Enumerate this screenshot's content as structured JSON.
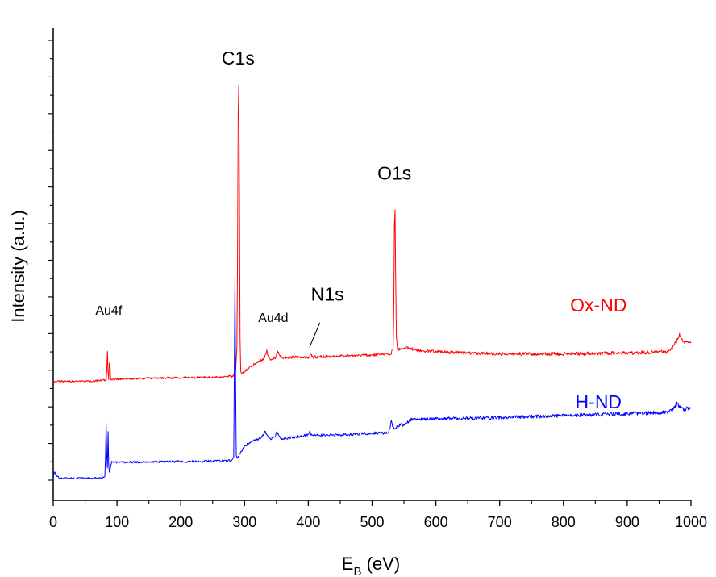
{
  "chart_data": {
    "type": "line",
    "xlabel_main": "E",
    "xlabel_sub": "B",
    "xlabel_rest": " (eV)",
    "ylabel": "Intensity (a.u.)",
    "xlim": [
      0,
      1000
    ],
    "x_ticks": [
      0,
      100,
      200,
      300,
      400,
      500,
      600,
      700,
      800,
      900,
      1000
    ],
    "y_tick_labels_shown": false,
    "grid": false,
    "series": [
      {
        "name": "Ox-ND",
        "color": "#ff0000",
        "points": [
          [
            0,
            0.245
          ],
          [
            60,
            0.245
          ],
          [
            80,
            0.248
          ],
          [
            83,
            0.247
          ],
          [
            84,
            0.275
          ],
          [
            85,
            0.32
          ],
          [
            86,
            0.27
          ],
          [
            87,
            0.25
          ],
          [
            88,
            0.29
          ],
          [
            89,
            0.285
          ],
          [
            90,
            0.25
          ],
          [
            95,
            0.25
          ],
          [
            140,
            0.252
          ],
          [
            200,
            0.254
          ],
          [
            250,
            0.255
          ],
          [
            282,
            0.258
          ],
          [
            286,
            0.27
          ],
          [
            288,
            0.33
          ],
          [
            289,
            0.55
          ],
          [
            290,
            0.9
          ],
          [
            291,
            0.98
          ],
          [
            292,
            0.7
          ],
          [
            293,
            0.35
          ],
          [
            294,
            0.27
          ],
          [
            296,
            0.263
          ],
          [
            300,
            0.27
          ],
          [
            310,
            0.282
          ],
          [
            320,
            0.292
          ],
          [
            330,
            0.3
          ],
          [
            333,
            0.31
          ],
          [
            335,
            0.32
          ],
          [
            337,
            0.305
          ],
          [
            340,
            0.298
          ],
          [
            348,
            0.302
          ],
          [
            352,
            0.318
          ],
          [
            355,
            0.31
          ],
          [
            360,
            0.303
          ],
          [
            380,
            0.305
          ],
          [
            400,
            0.304
          ],
          [
            404,
            0.312
          ],
          [
            407,
            0.305
          ],
          [
            450,
            0.308
          ],
          [
            500,
            0.31
          ],
          [
            530,
            0.313
          ],
          [
            533,
            0.33
          ],
          [
            534,
            0.42
          ],
          [
            535,
            0.63
          ],
          [
            536,
            0.67
          ],
          [
            537,
            0.5
          ],
          [
            538,
            0.36
          ],
          [
            540,
            0.325
          ],
          [
            545,
            0.325
          ],
          [
            555,
            0.33
          ],
          [
            562,
            0.325
          ],
          [
            580,
            0.32
          ],
          [
            650,
            0.315
          ],
          [
            700,
            0.313
          ],
          [
            800,
            0.313
          ],
          [
            900,
            0.315
          ],
          [
            960,
            0.318
          ],
          [
            968,
            0.32
          ],
          [
            975,
            0.338
          ],
          [
            982,
            0.36
          ],
          [
            985,
            0.35
          ],
          [
            990,
            0.34
          ],
          [
            995,
            0.345
          ],
          [
            1000,
            0.34
          ]
        ]
      },
      {
        "name": "H-ND",
        "color": "#0000ff",
        "points": [
          [
            0,
            0.008
          ],
          [
            2,
            0.02
          ],
          [
            5,
            0.012
          ],
          [
            10,
            0.005
          ],
          [
            30,
            0.005
          ],
          [
            60,
            0.005
          ],
          [
            78,
            0.006
          ],
          [
            81,
            0.01
          ],
          [
            82,
            0.06
          ],
          [
            83,
            0.14
          ],
          [
            84,
            0.06
          ],
          [
            85,
            0.03
          ],
          [
            86,
            0.12
          ],
          [
            87,
            0.04
          ],
          [
            88,
            0.02
          ],
          [
            92,
            0.045
          ],
          [
            100,
            0.044
          ],
          [
            150,
            0.045
          ],
          [
            200,
            0.046
          ],
          [
            250,
            0.047
          ],
          [
            281,
            0.049
          ],
          [
            283,
            0.06
          ],
          [
            284,
            0.28
          ],
          [
            285,
            0.5
          ],
          [
            286,
            0.24
          ],
          [
            287,
            0.06
          ],
          [
            289,
            0.055
          ],
          [
            300,
            0.085
          ],
          [
            315,
            0.098
          ],
          [
            325,
            0.104
          ],
          [
            329,
            0.11
          ],
          [
            332,
            0.122
          ],
          [
            335,
            0.112
          ],
          [
            340,
            0.102
          ],
          [
            348,
            0.11
          ],
          [
            351,
            0.12
          ],
          [
            354,
            0.108
          ],
          [
            360,
            0.102
          ],
          [
            400,
            0.112
          ],
          [
            402,
            0.12
          ],
          [
            405,
            0.112
          ],
          [
            450,
            0.112
          ],
          [
            500,
            0.116
          ],
          [
            525,
            0.117
          ],
          [
            528,
            0.13
          ],
          [
            530,
            0.15
          ],
          [
            531,
            0.142
          ],
          [
            533,
            0.13
          ],
          [
            538,
            0.13
          ],
          [
            545,
            0.14
          ],
          [
            550,
            0.135
          ],
          [
            560,
            0.15
          ],
          [
            600,
            0.152
          ],
          [
            700,
            0.155
          ],
          [
            800,
            0.16
          ],
          [
            900,
            0.165
          ],
          [
            960,
            0.168
          ],
          [
            970,
            0.172
          ],
          [
            978,
            0.19
          ],
          [
            983,
            0.182
          ],
          [
            990,
            0.175
          ],
          [
            995,
            0.178
          ],
          [
            1000,
            0.178
          ]
        ]
      }
    ],
    "annotations": [
      {
        "text": "C1s",
        "x": 290,
        "y": 1.03,
        "size": "large",
        "color": "#000000"
      },
      {
        "text": "O1s",
        "x": 535,
        "y": 0.745,
        "size": "large",
        "color": "#000000"
      },
      {
        "text": "N1s",
        "x": 430,
        "y": 0.445,
        "size": "large",
        "color": "#000000"
      },
      {
        "text": "Au4f",
        "x": 87,
        "y": 0.41,
        "size": "small",
        "color": "#000000"
      },
      {
        "text": "Au4d",
        "x": 345,
        "y": 0.392,
        "size": "small",
        "color": "#000000"
      },
      {
        "text": "Ox-ND",
        "x": 855,
        "y": 0.418,
        "size": "large",
        "color": "#ff0000"
      },
      {
        "text": "H-ND",
        "x": 855,
        "y": 0.178,
        "size": "large",
        "color": "#0000ff"
      }
    ],
    "pointer_line": {
      "from": [
        402,
        0.33
      ],
      "to": [
        418,
        0.39
      ]
    },
    "ylim": [
      -0.05,
      1.12
    ]
  }
}
